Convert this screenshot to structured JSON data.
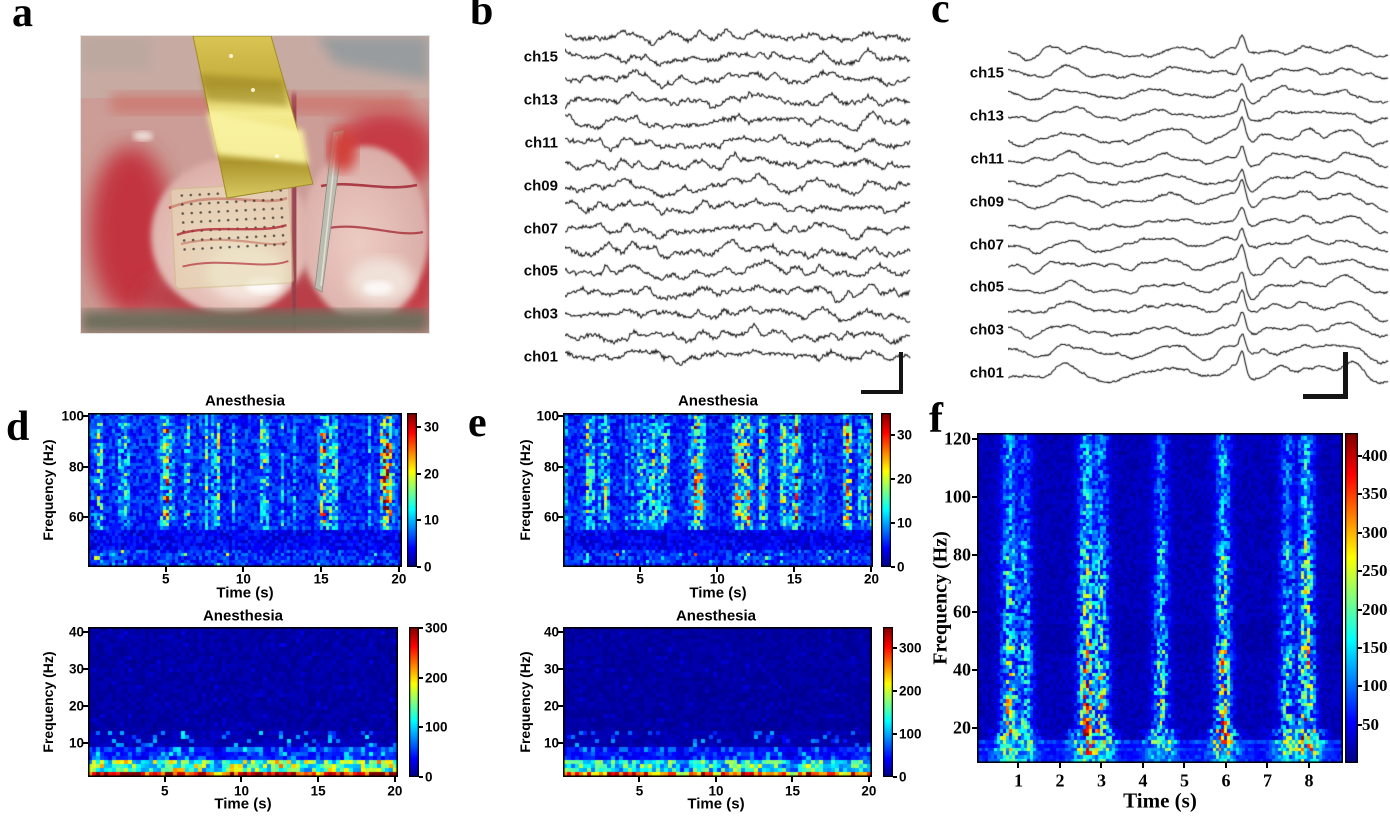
{
  "panels": {
    "a": {
      "label": "a",
      "content": "photograph of a flexible gold multichannel ECoG electrode array placed on exposed cortex beside a reference probe"
    },
    "b": {
      "label": "b",
      "content": "16-channel raw traces, desynchronized fast activity"
    },
    "c": {
      "label": "c",
      "content": "16-channel raw traces, slow synchronized oscillations with sharp transients"
    },
    "d": {
      "label": "d",
      "content": "spectrograms under anesthesia (channel set 1)"
    },
    "e": {
      "label": "e",
      "content": "spectrograms under anesthesia (channel set 2)"
    },
    "f": {
      "label": "f",
      "content": "wide-band spectrogram with burst-suppression pattern"
    }
  },
  "chart_data": [
    {
      "id": "b",
      "type": "line",
      "panel": "b",
      "kind": "multichannel-traces",
      "n_channels": 16,
      "channel_labels": [
        "ch15",
        "ch13",
        "ch11",
        "ch09",
        "ch07",
        "ch05",
        "ch03",
        "ch01"
      ],
      "style": "fast low-amplitude desynchronized LFP, common slow dip near 27% of sweep",
      "scale_bar": true,
      "seed": 20
    },
    {
      "id": "c",
      "type": "line",
      "panel": "c",
      "kind": "multichannel-traces",
      "n_channels": 16,
      "channel_labels": [
        "ch15",
        "ch13",
        "ch11",
        "ch09",
        "ch07",
        "ch05",
        "ch03",
        "ch01"
      ],
      "style": "slow high-amplitude synchronized waves with sharp population spike near 62% and hump near 78% of sweep",
      "spike_times_frac": [
        0.615,
        0.78
      ],
      "scale_bar": true,
      "seed": 77
    },
    {
      "id": "d_top",
      "type": "heatmap",
      "panel": "d",
      "title": "Anesthesia",
      "xlabel": "Time (s)",
      "ylabel": "Frequency (Hz)",
      "x_range": [
        0,
        20.2
      ],
      "y_range": [
        40,
        101.3
      ],
      "xticks": [
        5,
        10,
        15,
        20
      ],
      "yticks": [
        60,
        80,
        100
      ],
      "colorbar_ticks": [
        0,
        10,
        20,
        30
      ],
      "vmax": 33,
      "pattern": "gamma_streaks",
      "grid": [
        104,
        46
      ],
      "seed": 11,
      "features": "vertical gamma streaks 55-100 Hz, quiet band 47-55 Hz, speckled band 40-46 Hz"
    },
    {
      "id": "d_bottom",
      "type": "heatmap",
      "panel": "d",
      "title": "Anesthesia",
      "xlabel": "Time (s)",
      "ylabel": "Frequency (Hz)",
      "x_range": [
        0,
        20.2
      ],
      "y_range": [
        0.7,
        41.3
      ],
      "xticks": [
        5,
        10,
        15,
        20
      ],
      "yticks": [
        10,
        20,
        30,
        40
      ],
      "colorbar_ticks": [
        0,
        100,
        200,
        300
      ],
      "vmax": 302,
      "pattern": "low_band",
      "grid": [
        76,
        36
      ],
      "seed": 22,
      "hot_segments": [
        [
          0.2,
          3.2
        ],
        [
          4.3,
          7.6
        ],
        [
          9.3,
          14.6
        ],
        [
          15.6,
          20
        ]
      ],
      "features": "hot delta band below 5 Hz with red segments, cyan blobs 5-12 Hz, dark blue above 13 Hz"
    },
    {
      "id": "e_top",
      "type": "heatmap",
      "panel": "e",
      "title": "Anesthesia",
      "xlabel": "Time (s)",
      "ylabel": "Frequency (Hz)",
      "x_range": [
        0,
        20.1
      ],
      "y_range": [
        40,
        101.3
      ],
      "xticks": [
        5,
        10,
        15,
        20
      ],
      "yticks": [
        60,
        80,
        100
      ],
      "colorbar_ticks": [
        0,
        10,
        20,
        30
      ],
      "vmax": 35,
      "pattern": "gamma_streaks",
      "grid": [
        104,
        46
      ],
      "seed": 33,
      "features": "vertical gamma streaks 55-100 Hz, quiet band 47-55 Hz, speckled band 40-46 Hz"
    },
    {
      "id": "e_bottom",
      "type": "heatmap",
      "panel": "e",
      "title": "Anesthesia",
      "xlabel": "Time (s)",
      "ylabel": "Frequency (Hz)",
      "x_range": [
        0,
        20.2
      ],
      "y_range": [
        0.7,
        41.3
      ],
      "xticks": [
        5,
        10,
        15,
        20
      ],
      "yticks": [
        10,
        20,
        30,
        40
      ],
      "colorbar_ticks": [
        0,
        100,
        200,
        300
      ],
      "vmax": 350,
      "pattern": "low_band",
      "grid": [
        76,
        36
      ],
      "seed": 44,
      "hot_segments": [
        [
          0,
          3.6
        ],
        [
          4.2,
          7.2
        ],
        [
          8.6,
          9.6
        ],
        [
          10.6,
          14.2
        ],
        [
          15.8,
          17.6
        ],
        [
          19,
          20
        ]
      ],
      "features": "very hot delta band below 5 Hz, cyan/yellow blobs 5-13 Hz"
    },
    {
      "id": "f",
      "type": "heatmap",
      "panel": "f",
      "title": "",
      "xlabel": "Time (s)",
      "ylabel": "Frequency (Hz)",
      "x_range": [
        0,
        8.82
      ],
      "y_range": [
        8,
        122
      ],
      "xticks": [
        1,
        2,
        3,
        4,
        5,
        6,
        7,
        8
      ],
      "yticks": [
        20,
        40,
        60,
        80,
        100,
        120
      ],
      "colorbar_ticks": [
        50,
        100,
        150,
        200,
        250,
        300,
        350,
        400
      ],
      "vmax": 430,
      "pattern": "bursts",
      "grid": [
        124,
        88
      ],
      "seed": 55,
      "burst_times": [
        0.8,
        1.15,
        2.65,
        3.0,
        4.45,
        5.95,
        7.5,
        7.95
      ],
      "burst_strengths": [
        0.8,
        0.55,
        1.0,
        0.8,
        0.65,
        0.9,
        0.6,
        1.0
      ],
      "features": "vertical burst columns strongest 15-50 Hz (red spots near 2.7 s/35 Hz and 7.9 s/65 Hz), light-blue band 9-16 Hz, green-yellow floor below 8 Hz"
    }
  ]
}
